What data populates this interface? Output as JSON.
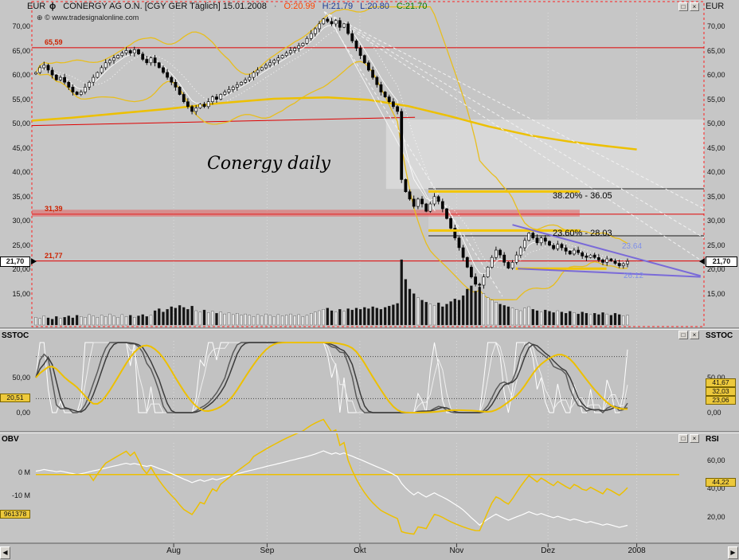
{
  "window": {
    "instrument_icon": "ϕ",
    "title": "CONERGY AG O.N. [CGY GER  Täglich]  15.01.2008",
    "separator": "·",
    "ohlc": {
      "open": "O:20.99",
      "high": "H:21.79",
      "low": "L:20.80",
      "close": "C:21.70"
    },
    "copyright_icon": "⊕",
    "copyright": "© www.tradesignalonline.com",
    "currency_left": "EUR",
    "currency_right": "EUR",
    "maximize_glyph": "□",
    "close_glyph": "×"
  },
  "colors": {
    "open_text": "#ff4500",
    "high_low_text": "#1e3d96",
    "close_text": "#007800",
    "accent_yellow": "#edc000",
    "fib_yellow": "#f2c500",
    "level_red": "#e00000",
    "wedge_purple": "#7a6ad8",
    "value_box_yellow": "#edc93c",
    "background_gray": "#c6c6c6"
  },
  "main_chart": {
    "price_ticks": [
      {
        "label": "70,00",
        "price": 70
      },
      {
        "label": "65,00",
        "price": 65
      },
      {
        "label": "60,00",
        "price": 60
      },
      {
        "label": "55,00",
        "price": 55
      },
      {
        "label": "50,00",
        "price": 50
      },
      {
        "label": "45,00",
        "price": 45
      },
      {
        "label": "40,00",
        "price": 40
      },
      {
        "label": "35,00",
        "price": 35
      },
      {
        "label": "30,00",
        "price": 30
      },
      {
        "label": "25,00",
        "price": 25
      },
      {
        "label": "20,00",
        "price": 20
      },
      {
        "label": "15,00",
        "price": 15
      }
    ],
    "level_labels": [
      {
        "text": "65,59",
        "price": 65.59
      },
      {
        "text": "31,39",
        "price": 31.39
      },
      {
        "text": "21,77",
        "price": 21.77
      }
    ],
    "current_price": {
      "label": "21,70",
      "price": 21.7
    },
    "annotation": "Conergy daily",
    "fib_labels": [
      {
        "text": "38.20% - 36.05"
      },
      {
        "text": "23.60% - 28.03"
      }
    ],
    "wedge_labels": [
      {
        "text": "23.64"
      },
      {
        "text": "26.12"
      }
    ]
  },
  "chart_data": [
    {
      "type": "candlestick",
      "title": "CONERGY AG O.N. daily, ~Jun 2007 - 15.01.2008",
      "ylabel": "EUR",
      "ylim": [
        13,
        74
      ],
      "last_ohlc": {
        "open": 20.99,
        "high": 21.79,
        "low": 20.8,
        "close": 21.7
      },
      "closes": [
        60.5,
        61.5,
        62.0,
        61.0,
        60.0,
        59.0,
        59.5,
        58.5,
        57.5,
        56.5,
        56.0,
        56.5,
        57.5,
        58.5,
        59.5,
        60.5,
        61.5,
        62.5,
        63.0,
        63.5,
        64.0,
        64.5,
        65.0,
        64.5,
        65.2,
        64.3,
        63.2,
        62.5,
        63.5,
        62.5,
        61.5,
        60.5,
        59.5,
        58.5,
        57.5,
        56.0,
        54.5,
        53.5,
        52.5,
        53.2,
        54.0,
        53.5,
        54.5,
        55.5,
        55.0,
        56.0,
        56.5,
        57.0,
        57.5,
        58.0,
        58.5,
        59.0,
        59.5,
        60.5,
        61.0,
        61.5,
        62.0,
        62.5,
        63.0,
        63.5,
        64.0,
        64.5,
        65.0,
        65.5,
        66.0,
        66.5,
        67.5,
        68.5,
        69.5,
        70.5,
        71.5,
        71.0,
        70.5,
        71.2,
        69.8,
        70.5,
        68.5,
        67.0,
        65.5,
        64.0,
        62.5,
        61.0,
        59.5,
        58.0,
        56.5,
        55.5,
        54.5,
        53.5,
        52.5,
        38.5,
        36.0,
        34.5,
        33.0,
        34.5,
        33.5,
        32.0,
        33.5,
        35.0,
        34.0,
        32.5,
        30.5,
        28.5,
        26.5,
        24.5,
        22.5,
        20.5,
        18.5,
        17.0,
        16.8,
        18.5,
        20.5,
        22.5,
        24.0,
        23.0,
        21.5,
        20.3,
        21.5,
        23.0,
        24.5,
        26.0,
        27.5,
        26.5,
        25.5,
        26.5,
        25.8,
        25.0,
        24.3,
        25.2,
        24.5,
        23.8,
        23.2,
        24.0,
        23.5,
        22.8,
        22.5,
        23.0,
        22.5,
        22.0,
        21.5,
        22.2,
        21.8,
        21.3,
        20.8,
        21.2,
        21.7
      ],
      "volumes": [
        12,
        10,
        14,
        11,
        9,
        13,
        10,
        12,
        14,
        11,
        15,
        13,
        12,
        16,
        14,
        12,
        15,
        13,
        17,
        14,
        12,
        16,
        13,
        15,
        12,
        14,
        16,
        13,
        15,
        22,
        25,
        20,
        24,
        28,
        26,
        30,
        27,
        24,
        29,
        22,
        20,
        23,
        19,
        21,
        18,
        20,
        17,
        19,
        16,
        18,
        15,
        17,
        15,
        13,
        16,
        14,
        17,
        15,
        13,
        16,
        14,
        15,
        17,
        14,
        16,
        13,
        15,
        18,
        20,
        22,
        24,
        26,
        22,
        20,
        24,
        21,
        25,
        23,
        26,
        24,
        27,
        25,
        28,
        26,
        24,
        27,
        29,
        31,
        33,
        100,
        70,
        55,
        48,
        42,
        38,
        35,
        32,
        30,
        34,
        28,
        32,
        36,
        40,
        38,
        45,
        55,
        60,
        52,
        58,
        48,
        42,
        38,
        35,
        32,
        30,
        28,
        26,
        24,
        22,
        26,
        28,
        24,
        22,
        20,
        23,
        21,
        19,
        22,
        20,
        18,
        21,
        19,
        17,
        20,
        18,
        16,
        18,
        16,
        19,
        17,
        15,
        18,
        16,
        14,
        15
      ],
      "overlays": {
        "slow_ma_yellow": [
          [
            0,
            50.6
          ],
          [
            0.06,
            51.2
          ],
          [
            0.12,
            52.0
          ],
          [
            0.2,
            53.0
          ],
          [
            0.28,
            54.2
          ],
          [
            0.36,
            55.1
          ],
          [
            0.44,
            55.4
          ],
          [
            0.5,
            54.9
          ],
          [
            0.56,
            53.6
          ],
          [
            0.62,
            51.6
          ],
          [
            0.68,
            49.4
          ],
          [
            0.74,
            47.6
          ],
          [
            0.8,
            46.3
          ],
          [
            0.86,
            45.3
          ],
          [
            0.9,
            44.7
          ]
        ],
        "red_levels": [
          65.59,
          31.39,
          21.77
        ],
        "red_band": {
          "p1": 32.3,
          "p2": 30.9,
          "x1f": 0,
          "x2f": 0.815
        },
        "red_trend": {
          "x1f": 0,
          "p1": 49.6,
          "x2f": 0.57,
          "p2": 51.3
        },
        "fib_segments": [
          {
            "price": 36.05,
            "x1f": 0.59,
            "x2f": 0.815
          },
          {
            "price": 28.03,
            "x1f": 0.59,
            "x2f": 0.815
          },
          {
            "price": 20.2,
            "x1f": 0.72,
            "x2f": 0.855
          }
        ],
        "black_levels": [
          {
            "price": 36.6,
            "x1f": 0.59,
            "x2f": 1.0
          },
          {
            "price": 26.95,
            "x1f": 0.59,
            "x2f": 1.0
          }
        ],
        "fan_lines": [
          {
            "x1f": 0.435,
            "p1": 73.0,
            "x2f": 1.0,
            "p2": 21.5,
            "dash": true
          },
          {
            "x1f": 0.435,
            "p1": 73.0,
            "x2f": 1.0,
            "p2": 26.5,
            "dash": true
          },
          {
            "x1f": 0.435,
            "p1": 73.0,
            "x2f": 1.0,
            "p2": 32.5,
            "dash": true
          },
          {
            "x1f": 0.435,
            "p1": 73.0,
            "x2f": 0.7,
            "p2": 14.5,
            "dash": true
          },
          {
            "x1f": 0.44,
            "p1": 72.5,
            "x2f": 0.6,
            "p2": 32.0,
            "dash": false
          }
        ],
        "wedge": [
          {
            "x1f": 0.715,
            "p1": 29.2,
            "x2f": 0.995,
            "p2": 18.7
          },
          {
            "x1f": 0.723,
            "p1": 20.2,
            "x2f": 0.995,
            "p2": 18.5
          }
        ],
        "highlight_rects": [
          {
            "x1f": 0.527,
            "x2f": 1.0,
            "p1": 50.85,
            "p2": 36.6,
            "fill": "rgba(255,255,255,0.32)"
          },
          {
            "x1f": 0.59,
            "x2f": 1.0,
            "p1": 36.6,
            "p2": 26.95,
            "fill": "rgba(255,255,255,0.16)"
          }
        ]
      }
    },
    {
      "type": "line",
      "name": "SSTOC (slow stochastic)",
      "panel": "middle",
      "ylim": [
        0,
        100
      ],
      "levels": [
        80,
        20
      ],
      "computed_from": "chart_data[0].closes, stochastic(5,3) fast + stochastic(14,3,3) slow + SMA10 signal",
      "visible_value_labels": [
        "41,67",
        "32,03",
        "23,06",
        "20,51"
      ]
    },
    {
      "type": "line",
      "name": "OBV / RSI",
      "panel": "bottom",
      "left_axis_ticks": [
        "0 M",
        "-10 M"
      ],
      "right_axis_ticks": [
        "60,00",
        "40,00",
        "20,00"
      ],
      "computed_from": "OBV from chart_data[0].closes+volumes; RSI(14) from closes",
      "visible_value_labels": [
        "961378",
        "44,22"
      ]
    }
  ],
  "sstoc_panel": {
    "title_left": "SSTOC",
    "title_right": "SSTOC",
    "ticks": [
      {
        "label": "50,00",
        "value": 50
      },
      {
        "label": "0,00",
        "value": 0
      }
    ],
    "left_value_box": "20,51",
    "right_value_boxes": [
      "41,67",
      "32,03",
      "23,06"
    ]
  },
  "obv_panel": {
    "title_left": "OBV",
    "title_right": "RSI",
    "left_ticks": [
      {
        "label": "0 M",
        "value": 0
      },
      {
        "label": "-10 M",
        "value": -10
      }
    ],
    "left_value_box": "961378",
    "right_ticks": [
      {
        "label": "60,00",
        "value": 60
      },
      {
        "label": "40,00",
        "value": 40
      },
      {
        "label": "20,00",
        "value": 20
      }
    ],
    "right_value_box": "44,22"
  },
  "time_axis": {
    "months": [
      {
        "label": "Aug",
        "xf": 0.211
      },
      {
        "label": "Sep",
        "xf": 0.35
      },
      {
        "label": "Okt",
        "xf": 0.488
      },
      {
        "label": "Nov",
        "xf": 0.632
      },
      {
        "label": "Dez",
        "xf": 0.768
      },
      {
        "label": "2008",
        "xf": 0.9
      }
    ],
    "scroll_left": "◀",
    "scroll_right": "▶"
  }
}
